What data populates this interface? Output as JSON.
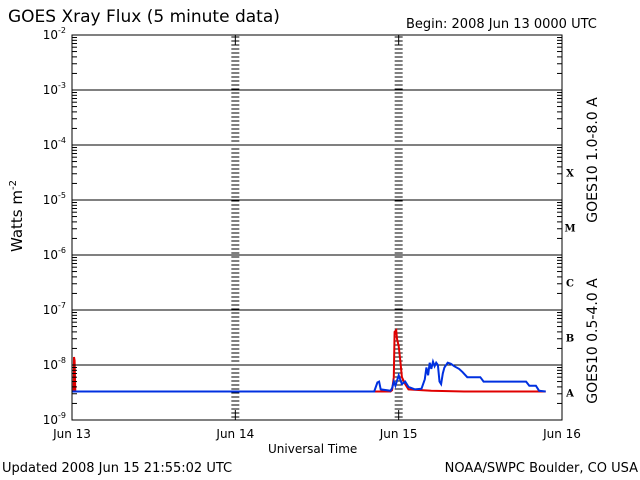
{
  "chart_data": {
    "type": "line",
    "title": "GOES Xray Flux (5 minute data)",
    "begin_label": "Begin:  2008 Jun 13 0000 UTC",
    "xlabel": "Universal Time",
    "ylabel": "Watts m",
    "ylabel_exp": "-2",
    "x_ticks": [
      "Jun 13",
      "Jun 14",
      "Jun 15",
      "Jun 16"
    ],
    "x_range_days": [
      0,
      3
    ],
    "y_scale": "log",
    "y_ticks": [
      {
        "base": "10",
        "exp": "-9",
        "value": 1e-09
      },
      {
        "base": "10",
        "exp": "-8",
        "value": 1e-08
      },
      {
        "base": "10",
        "exp": "-7",
        "value": 1e-07
      },
      {
        "base": "10",
        "exp": "-6",
        "value": 1e-06
      },
      {
        "base": "10",
        "exp": "-5",
        "value": 1e-05
      },
      {
        "base": "10",
        "exp": "-4",
        "value": 0.0001
      },
      {
        "base": "10",
        "exp": "-3",
        "value": 0.001
      },
      {
        "base": "10",
        "exp": "-2",
        "value": 0.01
      }
    ],
    "ylim": [
      1e-09,
      0.01
    ],
    "flare_classes": [
      "X",
      "M",
      "C",
      "B",
      "A"
    ],
    "grid": true,
    "series": [
      {
        "name": "GOES10 1.0-8.0 A",
        "color": "#e00000",
        "points": [
          [
            0.0,
            3.3e-09
          ],
          [
            0.01,
            3.3e-09
          ],
          [
            0.012,
            1.4e-08
          ],
          [
            0.016,
            1.2e-08
          ],
          [
            0.02,
            3.3e-09
          ],
          [
            0.5,
            3.3e-09
          ],
          [
            1.0,
            3.3e-09
          ],
          [
            1.5,
            3.3e-09
          ],
          [
            1.95,
            3.3e-09
          ],
          [
            1.96,
            3.5e-09
          ],
          [
            1.97,
            6e-09
          ],
          [
            1.975,
            4e-08
          ],
          [
            1.985,
            4.3e-08
          ],
          [
            1.99,
            3e-08
          ],
          [
            2.0,
            2.2e-08
          ],
          [
            2.01,
            1.2e-08
          ],
          [
            2.02,
            6e-09
          ],
          [
            2.04,
            4.5e-09
          ],
          [
            2.06,
            3.6e-09
          ],
          [
            2.2,
            3.4e-09
          ],
          [
            2.4,
            3.3e-09
          ],
          [
            2.6,
            3.3e-09
          ],
          [
            2.8,
            3.3e-09
          ],
          [
            2.9,
            3.3e-09
          ]
        ]
      },
      {
        "name": "GOES10 0.5-4.0 A",
        "color": "#0030e0",
        "points": [
          [
            0.0,
            3.3e-09
          ],
          [
            0.5,
            3.3e-09
          ],
          [
            1.0,
            3.3e-09
          ],
          [
            1.5,
            3.3e-09
          ],
          [
            1.85,
            3.3e-09
          ],
          [
            1.87,
            4.8e-09
          ],
          [
            1.88,
            5e-09
          ],
          [
            1.89,
            3.6e-09
          ],
          [
            1.95,
            3.4e-09
          ],
          [
            1.96,
            3.8e-09
          ],
          [
            1.97,
            5e-09
          ],
          [
            1.98,
            4.2e-09
          ],
          [
            2.0,
            6.5e-09
          ],
          [
            2.02,
            4.5e-09
          ],
          [
            2.04,
            5e-09
          ],
          [
            2.06,
            4e-09
          ],
          [
            2.1,
            3.6e-09
          ],
          [
            2.14,
            3.7e-09
          ],
          [
            2.16,
            5.5e-09
          ],
          [
            2.17,
            9e-09
          ],
          [
            2.18,
            6.5e-09
          ],
          [
            2.19,
            1.1e-08
          ],
          [
            2.2,
            8.5e-09
          ],
          [
            2.21,
            1.15e-08
          ],
          [
            2.22,
            9.5e-09
          ],
          [
            2.23,
            1.1e-08
          ],
          [
            2.24,
            1e-08
          ],
          [
            2.25,
            5e-09
          ],
          [
            2.26,
            4.5e-09
          ],
          [
            2.27,
            7e-09
          ],
          [
            2.28,
            9e-09
          ],
          [
            2.3,
            1.1e-08
          ],
          [
            2.32,
            1.05e-08
          ],
          [
            2.34,
            9.5e-09
          ],
          [
            2.37,
            8.5e-09
          ],
          [
            2.39,
            7.5e-09
          ],
          [
            2.42,
            6e-09
          ],
          [
            2.46,
            6e-09
          ],
          [
            2.5,
            6e-09
          ],
          [
            2.52,
            5e-09
          ],
          [
            2.6,
            5e-09
          ],
          [
            2.7,
            5e-09
          ],
          [
            2.78,
            5e-09
          ],
          [
            2.8,
            4.2e-09
          ],
          [
            2.84,
            4.2e-09
          ],
          [
            2.86,
            3.4e-09
          ],
          [
            2.9,
            3.3e-09
          ]
        ]
      }
    ]
  },
  "footer": {
    "updated": "Updated 2008 Jun 15 21:55:02 UTC",
    "source": "NOAA/SWPC Boulder, CO USA"
  }
}
